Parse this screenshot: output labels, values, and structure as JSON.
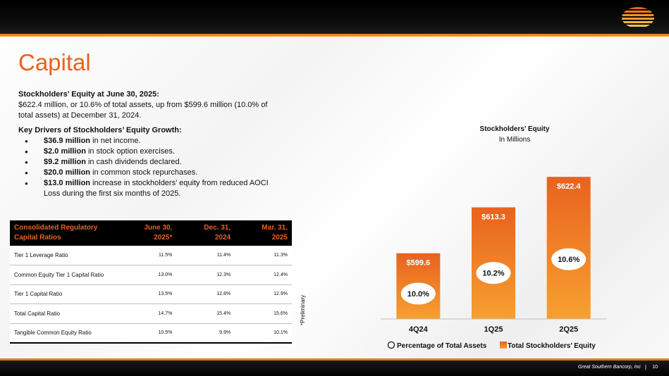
{
  "title": "Capital",
  "equity_summary": {
    "heading": "Stockholders’ Equity at June 30, 2025:",
    "body": "$622.4 million, or 10.6% of total assets, up from $599.6 million (10.0% of total assets) at December 31, 2024."
  },
  "drivers": {
    "heading": "Key Drivers of Stockholders’ Equity Growth:",
    "items": [
      {
        "bold": "$36.9 million",
        "text": " in net income."
      },
      {
        "bold": "$2.0 million",
        "text": " in stock option exercises."
      },
      {
        "bold": "$9.2 million",
        "text": " in cash dividends declared."
      },
      {
        "bold": "$20.0 million",
        "text": " in common stock repurchases."
      },
      {
        "bold": "$13.0 million",
        "text": " increase in stockholders’ equity from reduced AOCI Loss during the first six months of 2025."
      }
    ]
  },
  "table": {
    "header": {
      "label_line1": "Consolidated Regulatory",
      "label_line2": "Capital Ratios",
      "cols": [
        {
          "line1": "June 30,",
          "line2": "2025*"
        },
        {
          "line1": "Dec. 31,",
          "line2": "2024"
        },
        {
          "line1": "Mar. 31,",
          "line2": "2025"
        }
      ]
    },
    "rows": [
      {
        "label": "Tier 1 Leverage Ratio",
        "values": [
          "11.5%",
          "11.4%",
          "11.3%"
        ]
      },
      {
        "label": "Common Equity Tier 1 Capital Ratio",
        "values": [
          "13.0%",
          "12.3%",
          "12.4%"
        ]
      },
      {
        "label": "Tier 1 Capital Ratio",
        "values": [
          "13.5%",
          "12.8%",
          "12.9%"
        ]
      },
      {
        "label": "Total Capital Ratio",
        "values": [
          "14.7%",
          "15.4%",
          "15.6%"
        ]
      },
      {
        "label": "Tangible Common Equity Ratio",
        "values": [
          "10.5%",
          "9.9%",
          "10.1%"
        ]
      }
    ]
  },
  "prelim_note": "*Preliminary",
  "chart_data": {
    "type": "bar",
    "title": "Stockholders’ Equity",
    "subtitle": "In Millions",
    "categories": [
      "4Q24",
      "1Q25",
      "2Q25"
    ],
    "series": [
      {
        "name": "Total Stockholders’ Equity",
        "values": [
          599.6,
          613.3,
          622.4
        ],
        "labels": [
          "$599.6",
          "$613.3",
          "$622.4"
        ]
      },
      {
        "name": "Percentage of Total Assets",
        "values": [
          10.0,
          10.2,
          10.6
        ],
        "labels": [
          "10.0%",
          "10.2%",
          "10.6%"
        ]
      }
    ],
    "ylim": [
      580,
      630
    ],
    "legend_position": "bottom",
    "colors": {
      "bar_top": "#e8621f",
      "bar_bottom": "#f7a030",
      "label": "#ffffff",
      "bubble": "#ffffff"
    }
  },
  "footer": {
    "company": "Great Southern Bancorp, Inc",
    "separator": "|",
    "page": "10"
  }
}
